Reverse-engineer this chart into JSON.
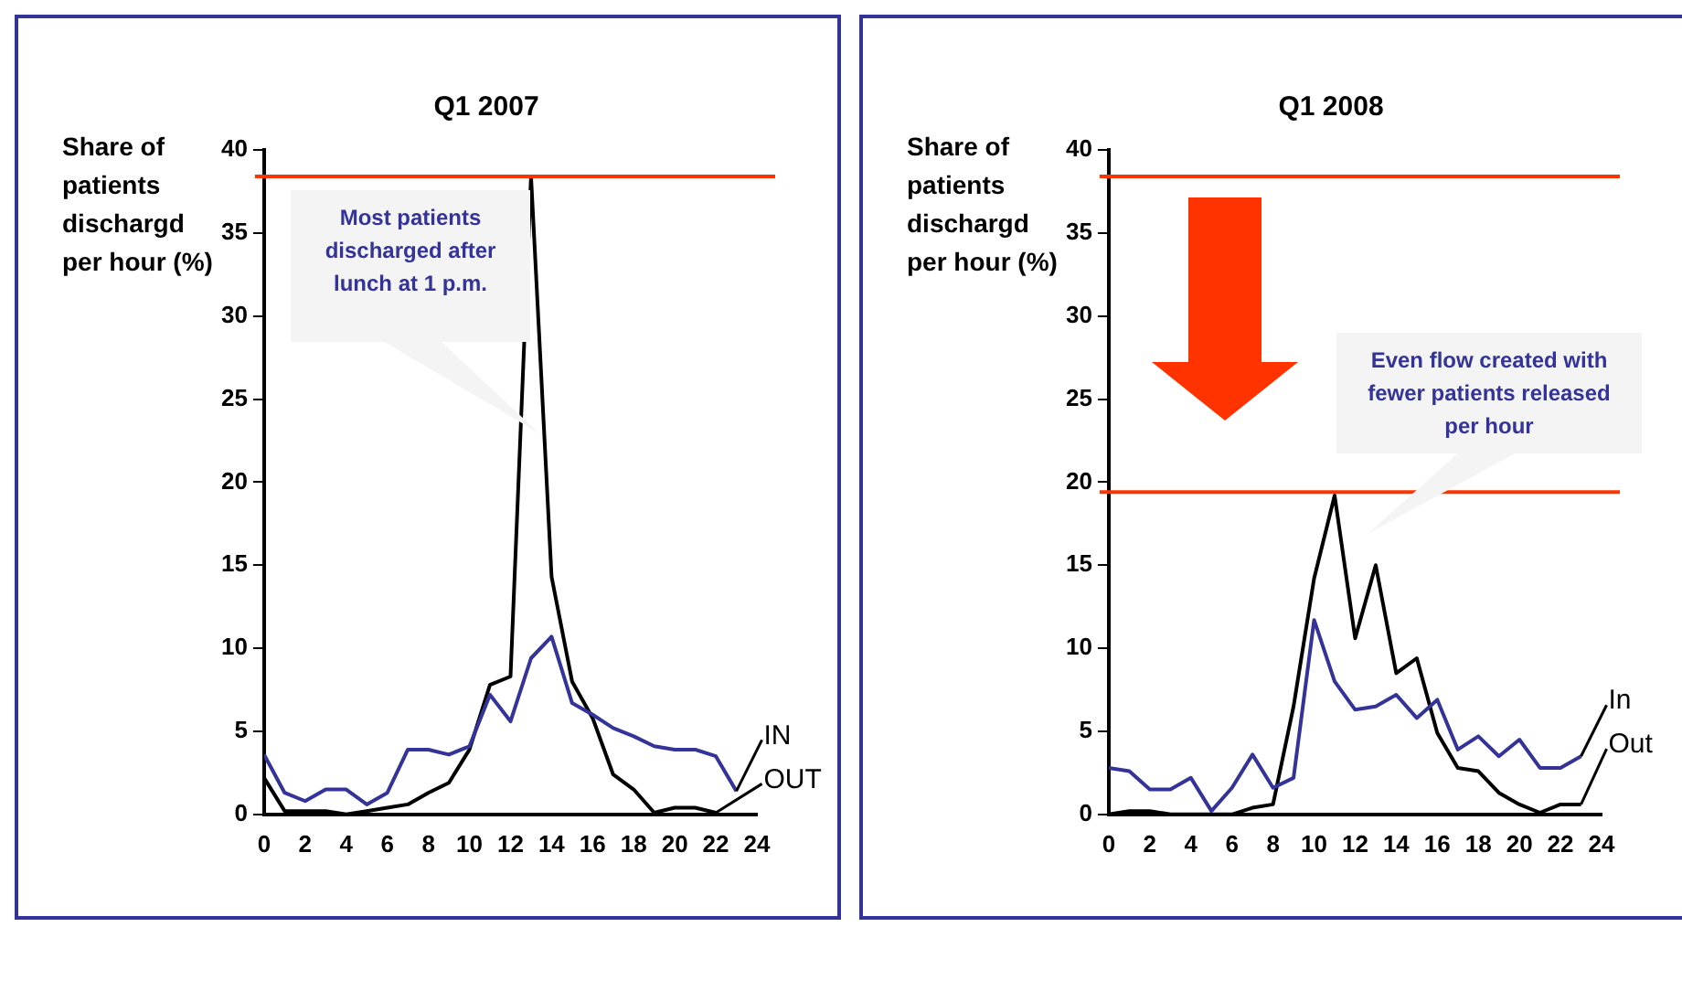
{
  "chart_data": [
    {
      "type": "line",
      "title": "Q1 2007",
      "ylabel": "Share of patients dischargd per hour (%)",
      "xlim": [
        0,
        24
      ],
      "ylim": [
        0,
        40
      ],
      "xticks": [
        0,
        2,
        4,
        6,
        8,
        10,
        12,
        14,
        16,
        18,
        20,
        22,
        24
      ],
      "yticks": [
        0,
        5,
        10,
        15,
        20,
        25,
        30,
        35,
        40
      ],
      "grid": false,
      "legend": "right",
      "marker": "none",
      "series": [
        {
          "name": "IN",
          "color": "#333399",
          "x": [
            0,
            1,
            2,
            3,
            4,
            5,
            6,
            7,
            8,
            9,
            10,
            11,
            12,
            13,
            14,
            15,
            16,
            17,
            18,
            19,
            20,
            21,
            22,
            23
          ],
          "values": [
            3.6,
            1.3,
            0.8,
            1.5,
            1.5,
            0.6,
            1.3,
            3.9,
            3.9,
            3.6,
            4.1,
            7.2,
            5.6,
            9.4,
            10.7,
            6.7,
            6.0,
            5.2,
            4.7,
            4.1,
            3.9,
            3.9,
            3.5,
            1.4
          ]
        },
        {
          "name": "OUT",
          "color": "#000000",
          "x": [
            0,
            1,
            2,
            3,
            4,
            5,
            6,
            7,
            8,
            9,
            10,
            11,
            12,
            13,
            14,
            15,
            16,
            17,
            18,
            19,
            20,
            21,
            22
          ],
          "values": [
            2.2,
            0.2,
            0.2,
            0.2,
            0,
            0.2,
            0.4,
            0.6,
            1.3,
            1.9,
            3.9,
            7.8,
            8.3,
            38.4,
            14.3,
            8.0,
            5.8,
            2.4,
            1.5,
            0.1,
            0.4,
            0.4,
            0.1
          ]
        }
      ],
      "ref_lines": [
        {
          "axis": "y",
          "value": 38.4,
          "color": "#ff3300"
        }
      ],
      "annotations": [
        "Most patients discharged after lunch at 1 p.m."
      ]
    },
    {
      "type": "line",
      "title": "Q1 2008",
      "ylabel": "Share of patients dischargd per hour (%)",
      "xlim": [
        0,
        24
      ],
      "ylim": [
        0,
        40
      ],
      "xticks": [
        0,
        2,
        4,
        6,
        8,
        10,
        12,
        14,
        16,
        18,
        20,
        22,
        24
      ],
      "yticks": [
        0,
        5,
        10,
        15,
        20,
        25,
        30,
        35,
        40
      ],
      "grid": false,
      "legend": "right",
      "marker": "none",
      "series": [
        {
          "name": "In",
          "color": "#333399",
          "x": [
            0,
            1,
            2,
            3,
            4,
            5,
            6,
            7,
            8,
            9,
            10,
            11,
            12,
            13,
            14,
            15,
            16,
            17,
            18,
            19,
            20,
            21,
            22,
            23
          ],
          "values": [
            2.8,
            2.6,
            1.5,
            1.5,
            2.2,
            0.2,
            1.6,
            3.6,
            1.6,
            2.2,
            11.7,
            8.0,
            6.3,
            6.5,
            7.2,
            5.8,
            6.9,
            3.9,
            4.7,
            3.5,
            4.5,
            2.8,
            2.8,
            3.5
          ]
        },
        {
          "name": "Out",
          "color": "#000000",
          "x": [
            0,
            1,
            2,
            3,
            4,
            5,
            6,
            7,
            8,
            9,
            10,
            11,
            12,
            13,
            14,
            15,
            16,
            17,
            18,
            19,
            20,
            21,
            22,
            23
          ],
          "values": [
            0,
            0.2,
            0.2,
            0,
            0,
            0,
            0,
            0.4,
            0.6,
            6.5,
            14.2,
            19.2,
            10.6,
            15.0,
            8.5,
            9.4,
            4.9,
            2.8,
            2.6,
            1.3,
            0.6,
            0.1,
            0.6,
            0.6
          ]
        }
      ],
      "ref_lines": [
        {
          "axis": "y",
          "value": 38.4,
          "color": "#ff3300"
        },
        {
          "axis": "y",
          "value": 19.4,
          "color": "#ff3300"
        }
      ],
      "annotations": [
        "Even flow created with fewer patients released per hour"
      ]
    }
  ]
}
